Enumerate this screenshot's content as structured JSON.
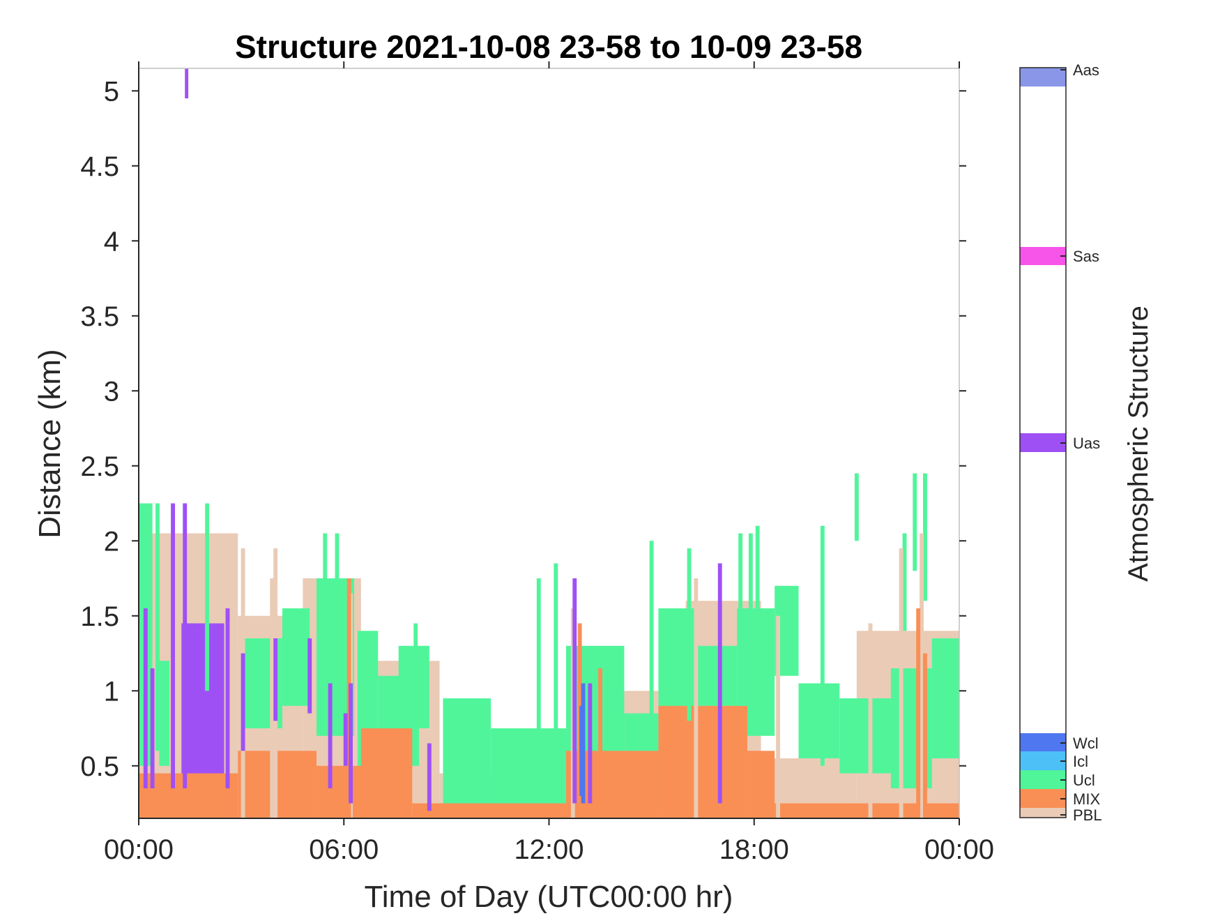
{
  "chart_data": {
    "type": "heatmap",
    "title": "Structure 2021-10-08 23-58 to 10-09 23-58",
    "xlabel": "Time of Day (UTC00:00 hr)",
    "ylabel": "Distance (km)",
    "xlim": [
      0,
      24
    ],
    "ylim": [
      0.15,
      5.15
    ],
    "x_ticks": [
      0,
      6,
      12,
      18,
      24
    ],
    "x_tick_labels": [
      "00:00",
      "06:00",
      "12:00",
      "18:00",
      "00:00"
    ],
    "y_ticks": [
      0.5,
      1,
      1.5,
      2,
      2.5,
      3,
      3.5,
      4,
      4.5,
      5
    ],
    "y_tick_labels": [
      "0.5",
      "1",
      "1.5",
      "2",
      "2.5",
      "3",
      "3.5",
      "4",
      "4.5",
      "5"
    ],
    "colorbar": {
      "label": "Atmospheric Structure",
      "categories": [
        {
          "name": "PBL",
          "color": "#EACBB6"
        },
        {
          "name": "MIX",
          "color": "#F98F55"
        },
        {
          "name": "Ucl",
          "color": "#50F59A"
        },
        {
          "name": "Icl",
          "color": "#4DC0F7"
        },
        {
          "name": "Wcl",
          "color": "#4F77EF"
        },
        {
          "name": "Uas",
          "color": "#9F50F5"
        },
        {
          "name": "Sas",
          "color": "#F754E9"
        },
        {
          "name": "Aas",
          "color": "#8A96E8"
        }
      ]
    },
    "cells": [
      {
        "class": "PBL",
        "x0": 0.0,
        "x1": 2.9,
        "y0": 0.15,
        "y1": 2.05
      },
      {
        "class": "PBL",
        "x0": 2.9,
        "x1": 4.8,
        "y0": 0.15,
        "y1": 1.5
      },
      {
        "class": "PBL",
        "x0": 4.8,
        "x1": 6.5,
        "y0": 0.15,
        "y1": 1.75
      },
      {
        "class": "PBL",
        "x0": 6.5,
        "x1": 8.8,
        "y0": 0.15,
        "y1": 1.2
      },
      {
        "class": "PBL",
        "x0": 8.8,
        "x1": 12.6,
        "y0": 0.15,
        "y1": 0.45
      },
      {
        "class": "PBL",
        "x0": 12.6,
        "x1": 16.0,
        "y0": 0.15,
        "y1": 1.0
      },
      {
        "class": "PBL",
        "x0": 16.0,
        "x1": 18.2,
        "y0": 0.15,
        "y1": 1.6
      },
      {
        "class": "PBL",
        "x0": 18.2,
        "x1": 21.0,
        "y0": 0.15,
        "y1": 0.55
      },
      {
        "class": "PBL",
        "x0": 21.0,
        "x1": 24.0,
        "y0": 0.15,
        "y1": 1.4
      },
      {
        "class": "Ucl",
        "x0": 0.0,
        "x1": 0.4,
        "y0": 0.5,
        "y1": 2.25
      },
      {
        "class": "Ucl",
        "x0": 0.6,
        "x1": 0.9,
        "y0": 0.5,
        "y1": 1.2
      },
      {
        "class": "Ucl",
        "x0": 3.1,
        "x1": 4.2,
        "y0": 0.75,
        "y1": 1.35
      },
      {
        "class": "Ucl",
        "x0": 4.2,
        "x1": 5.0,
        "y0": 0.9,
        "y1": 1.55
      },
      {
        "class": "Ucl",
        "x0": 5.2,
        "x1": 6.3,
        "y0": 0.7,
        "y1": 1.75
      },
      {
        "class": "Ucl",
        "x0": 6.4,
        "x1": 7.0,
        "y0": 0.45,
        "y1": 1.4
      },
      {
        "class": "Ucl",
        "x0": 7.0,
        "x1": 8.2,
        "y0": 0.5,
        "y1": 1.1
      },
      {
        "class": "Ucl",
        "x0": 7.6,
        "x1": 8.5,
        "y0": 0.75,
        "y1": 1.3
      },
      {
        "class": "Ucl",
        "x0": 8.9,
        "x1": 10.3,
        "y0": 0.25,
        "y1": 0.95
      },
      {
        "class": "Ucl",
        "x0": 10.3,
        "x1": 12.5,
        "y0": 0.25,
        "y1": 0.75
      },
      {
        "class": "Ucl",
        "x0": 12.5,
        "x1": 14.2,
        "y0": 0.55,
        "y1": 1.3
      },
      {
        "class": "Ucl",
        "x0": 14.2,
        "x1": 15.2,
        "y0": 0.25,
        "y1": 0.85
      },
      {
        "class": "Ucl",
        "x0": 15.2,
        "x1": 16.3,
        "y0": 0.6,
        "y1": 1.55
      },
      {
        "class": "Ucl",
        "x0": 16.3,
        "x1": 17.5,
        "y0": 0.9,
        "y1": 1.3
      },
      {
        "class": "Ucl",
        "x0": 17.5,
        "x1": 18.6,
        "y0": 0.7,
        "y1": 1.55
      },
      {
        "class": "Ucl",
        "x0": 18.6,
        "x1": 19.3,
        "y0": 1.1,
        "y1": 1.7
      },
      {
        "class": "Ucl",
        "x0": 19.3,
        "x1": 20.5,
        "y0": 0.55,
        "y1": 1.05
      },
      {
        "class": "Ucl",
        "x0": 20.5,
        "x1": 22.0,
        "y0": 0.45,
        "y1": 0.95
      },
      {
        "class": "Ucl",
        "x0": 22.0,
        "x1": 23.2,
        "y0": 0.35,
        "y1": 1.15
      },
      {
        "class": "Ucl",
        "x0": 23.2,
        "x1": 24.0,
        "y0": 0.55,
        "y1": 1.35
      },
      {
        "class": "MIX",
        "x0": 0.0,
        "x1": 2.9,
        "y0": 0.15,
        "y1": 0.45
      },
      {
        "class": "MIX",
        "x0": 2.9,
        "x1": 5.2,
        "y0": 0.15,
        "y1": 0.6
      },
      {
        "class": "MIX",
        "x0": 5.2,
        "x1": 7.0,
        "y0": 0.15,
        "y1": 0.5
      },
      {
        "class": "MIX",
        "x0": 6.5,
        "x1": 8.0,
        "y0": 0.15,
        "y1": 0.75
      },
      {
        "class": "MIX",
        "x0": 8.0,
        "x1": 12.5,
        "y0": 0.15,
        "y1": 0.25
      },
      {
        "class": "MIX",
        "x0": 12.5,
        "x1": 15.2,
        "y0": 0.15,
        "y1": 0.6
      },
      {
        "class": "MIX",
        "x0": 15.2,
        "x1": 17.8,
        "y0": 0.15,
        "y1": 0.9
      },
      {
        "class": "MIX",
        "x0": 17.8,
        "x1": 18.6,
        "y0": 0.15,
        "y1": 0.6
      },
      {
        "class": "MIX",
        "x0": 18.6,
        "x1": 24.0,
        "y0": 0.15,
        "y1": 0.25
      },
      {
        "class": "Uas",
        "x0": 1.25,
        "x1": 2.5,
        "y0": 0.45,
        "y1": 1.45
      },
      {
        "class": "Uas",
        "x0": 1.35,
        "x1": 1.45,
        "y0": 4.95,
        "y1": 5.15
      }
    ],
    "spikes": [
      {
        "class": "Ucl",
        "t": 0.55,
        "y0": 0.6,
        "y1": 2.25
      },
      {
        "class": "Ucl",
        "t": 2.0,
        "y0": 1.0,
        "y1": 2.25
      },
      {
        "class": "Ucl",
        "t": 5.45,
        "y0": 1.3,
        "y1": 2.05
      },
      {
        "class": "Ucl",
        "t": 5.8,
        "y0": 1.2,
        "y1": 2.05
      },
      {
        "class": "Ucl",
        "t": 8.1,
        "y0": 0.9,
        "y1": 1.45
      },
      {
        "class": "Ucl",
        "t": 11.7,
        "y0": 0.6,
        "y1": 1.75
      },
      {
        "class": "Ucl",
        "t": 12.2,
        "y0": 0.6,
        "y1": 1.85
      },
      {
        "class": "Ucl",
        "t": 15.0,
        "y0": 0.8,
        "y1": 2.0
      },
      {
        "class": "Ucl",
        "t": 16.1,
        "y0": 0.8,
        "y1": 1.95
      },
      {
        "class": "Ucl",
        "t": 17.6,
        "y0": 0.9,
        "y1": 2.05
      },
      {
        "class": "Ucl",
        "t": 17.9,
        "y0": 0.9,
        "y1": 2.05
      },
      {
        "class": "Ucl",
        "t": 18.1,
        "y0": 0.8,
        "y1": 2.1
      },
      {
        "class": "Ucl",
        "t": 20.0,
        "y0": 0.5,
        "y1": 2.1
      },
      {
        "class": "Ucl",
        "t": 21.0,
        "y0": 2.0,
        "y1": 2.45
      },
      {
        "class": "Ucl",
        "t": 22.7,
        "y0": 1.8,
        "y1": 2.45
      },
      {
        "class": "Ucl",
        "t": 23.0,
        "y0": 1.6,
        "y1": 2.45
      },
      {
        "class": "Ucl",
        "t": 22.4,
        "y0": 1.4,
        "y1": 2.05
      },
      {
        "class": "PBL",
        "t": 3.05,
        "y0": 0.15,
        "y1": 1.95
      },
      {
        "class": "PBL",
        "t": 3.9,
        "y0": 0.15,
        "y1": 1.75
      },
      {
        "class": "PBL",
        "t": 4.0,
        "y0": 0.15,
        "y1": 1.95
      },
      {
        "class": "PBL",
        "t": 6.2,
        "y0": 0.15,
        "y1": 1.65
      },
      {
        "class": "PBL",
        "t": 12.7,
        "y0": 0.15,
        "y1": 1.55
      },
      {
        "class": "PBL",
        "t": 16.3,
        "y0": 0.15,
        "y1": 1.75
      },
      {
        "class": "PBL",
        "t": 18.7,
        "y0": 0.15,
        "y1": 1.5
      },
      {
        "class": "PBL",
        "t": 21.4,
        "y0": 0.15,
        "y1": 1.45
      },
      {
        "class": "PBL",
        "t": 22.3,
        "y0": 0.15,
        "y1": 1.95
      },
      {
        "class": "PBL",
        "t": 22.9,
        "y0": 0.15,
        "y1": 2.05
      },
      {
        "class": "MIX",
        "t": 6.15,
        "y0": 0.15,
        "y1": 1.75
      },
      {
        "class": "MIX",
        "t": 12.9,
        "y0": 0.15,
        "y1": 1.45
      },
      {
        "class": "MIX",
        "t": 13.5,
        "y0": 0.15,
        "y1": 1.15
      },
      {
        "class": "MIX",
        "t": 22.8,
        "y0": 0.15,
        "y1": 1.55
      },
      {
        "class": "MIX",
        "t": 23.0,
        "y0": 0.15,
        "y1": 1.25
      },
      {
        "class": "Uas",
        "t": 0.2,
        "y0": 0.35,
        "y1": 1.55
      },
      {
        "class": "Uas",
        "t": 0.4,
        "y0": 0.35,
        "y1": 1.15
      },
      {
        "class": "Uas",
        "t": 1.0,
        "y0": 0.35,
        "y1": 2.25
      },
      {
        "class": "Uas",
        "t": 1.35,
        "y0": 0.35,
        "y1": 2.25
      },
      {
        "class": "Uas",
        "t": 2.6,
        "y0": 0.35,
        "y1": 1.55
      },
      {
        "class": "Uas",
        "t": 3.05,
        "y0": 0.6,
        "y1": 1.25
      },
      {
        "class": "Uas",
        "t": 4.0,
        "y0": 0.8,
        "y1": 1.35
      },
      {
        "class": "Uas",
        "t": 5.0,
        "y0": 0.85,
        "y1": 1.35
      },
      {
        "class": "Uas",
        "t": 5.6,
        "y0": 0.35,
        "y1": 1.05
      },
      {
        "class": "Uas",
        "t": 6.05,
        "y0": 0.5,
        "y1": 0.85
      },
      {
        "class": "Uas",
        "t": 6.2,
        "y0": 0.25,
        "y1": 1.05
      },
      {
        "class": "Uas",
        "t": 8.5,
        "y0": 0.2,
        "y1": 0.65
      },
      {
        "class": "Uas",
        "t": 12.75,
        "y0": 0.25,
        "y1": 1.75
      },
      {
        "class": "Uas",
        "t": 13.2,
        "y0": 0.25,
        "y1": 1.05
      },
      {
        "class": "Uas",
        "t": 17.0,
        "y0": 0.25,
        "y1": 1.85
      },
      {
        "class": "Wcl",
        "t": 13.0,
        "y0": 0.25,
        "y1": 1.05
      },
      {
        "class": "Wcl",
        "t": 12.95,
        "y0": 0.3,
        "y1": 0.9
      }
    ]
  }
}
